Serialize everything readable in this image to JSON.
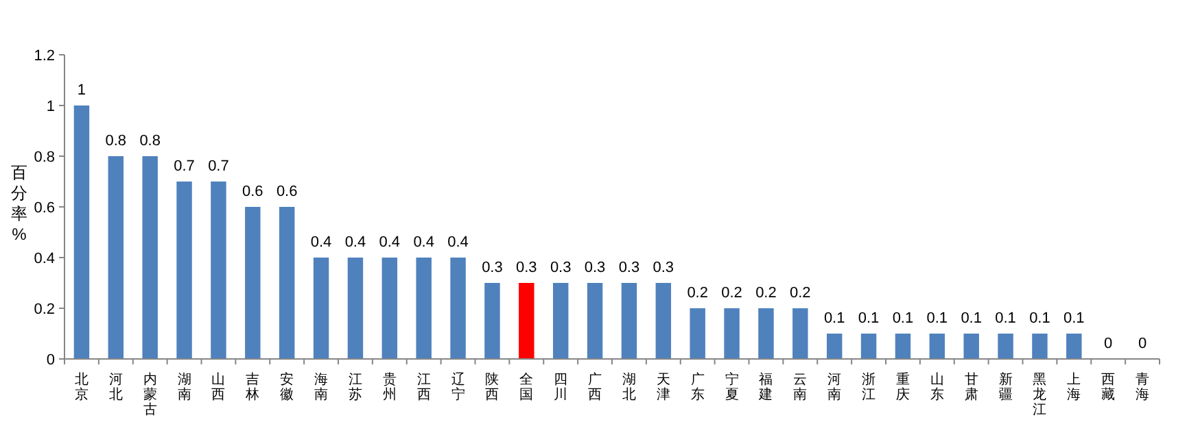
{
  "chart_data": {
    "type": "bar",
    "ylabel": "百分率%",
    "categories": [
      "北京",
      "河北",
      "内蒙古",
      "湖南",
      "山西",
      "吉林",
      "安徽",
      "海南",
      "江苏",
      "贵州",
      "江西",
      "辽宁",
      "陕西",
      "全国",
      "四川",
      "广西",
      "湖北",
      "天津",
      "广东",
      "宁夏",
      "福建",
      "云南",
      "河南",
      "浙江",
      "重庆",
      "山东",
      "甘肃",
      "新疆",
      "黑龙江",
      "上海",
      "西藏",
      "青海"
    ],
    "values": [
      1,
      0.8,
      0.8,
      0.7,
      0.7,
      0.6,
      0.6,
      0.4,
      0.4,
      0.4,
      0.4,
      0.4,
      0.3,
      0.3,
      0.3,
      0.3,
      0.3,
      0.3,
      0.2,
      0.2,
      0.2,
      0.2,
      0.1,
      0.1,
      0.1,
      0.1,
      0.1,
      0.1,
      0.1,
      0.1,
      0,
      0
    ],
    "colors": [
      "#4f81bd",
      "#4f81bd",
      "#4f81bd",
      "#4f81bd",
      "#4f81bd",
      "#4f81bd",
      "#4f81bd",
      "#4f81bd",
      "#4f81bd",
      "#4f81bd",
      "#4f81bd",
      "#4f81bd",
      "#4f81bd",
      "#ff0000",
      "#4f81bd",
      "#4f81bd",
      "#4f81bd",
      "#4f81bd",
      "#4f81bd",
      "#4f81bd",
      "#4f81bd",
      "#4f81bd",
      "#4f81bd",
      "#4f81bd",
      "#4f81bd",
      "#4f81bd",
      "#4f81bd",
      "#4f81bd",
      "#4f81bd",
      "#4f81bd",
      "#4f81bd",
      "#4f81bd"
    ],
    "ylim": [
      0,
      1.2
    ],
    "yticks": [
      0,
      0.2,
      0.4,
      0.6,
      0.8,
      1,
      1.2
    ],
    "data_labels": true
  }
}
